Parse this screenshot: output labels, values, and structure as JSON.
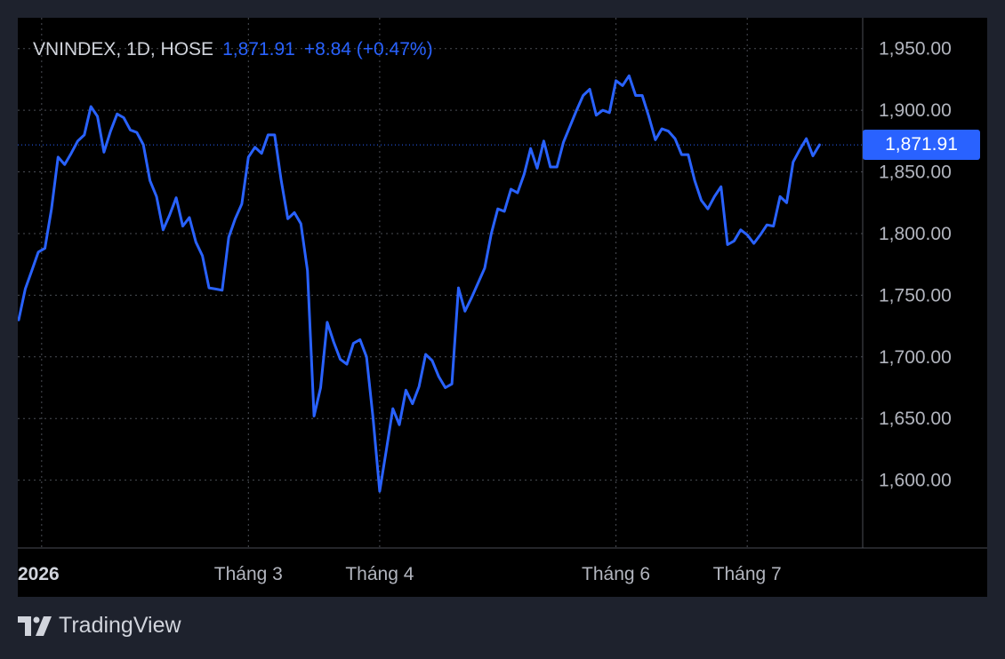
{
  "legend": {
    "symbol": "VNINDEX, 1D, HOSE",
    "last": "1,871.91",
    "change": "+8.84 (+0.47%)"
  },
  "price_tag": "1,871.91",
  "brand": {
    "name": "TradingView"
  },
  "colors": {
    "line": "#2962ff",
    "background": "#000000",
    "frame": "#1e222d",
    "grid": "#4a4d55",
    "text": "#b2b5be"
  },
  "chart_data": {
    "type": "line",
    "last_value": 1871.91,
    "ylim": [
      1545,
      1975
    ],
    "y_ticks": [
      1950,
      1900,
      1850,
      1800,
      1750,
      1700,
      1650,
      1600
    ],
    "y_tick_labels": [
      "1,950.00",
      "1,900.00",
      "1,850.00",
      "1,800.00",
      "1,750.00",
      "1,700.00",
      "1,650.00",
      "1,600.00"
    ],
    "x_ticks": [
      {
        "label": "2026",
        "index": 3.5,
        "bold": true
      },
      {
        "label": "Tháng 3",
        "index": 35
      },
      {
        "label": "Tháng 4",
        "index": 55
      },
      {
        "label": "Tháng 6",
        "index": 91
      },
      {
        "label": "Tháng 7",
        "index": 111
      }
    ],
    "grid": true,
    "series": [
      {
        "values": [
          1730,
          1755,
          1770,
          1785,
          1788,
          1820,
          1862,
          1856,
          1865,
          1875,
          1880,
          1903,
          1895,
          1866,
          1883,
          1897,
          1894,
          1884,
          1882,
          1872,
          1843,
          1830,
          1803,
          1815,
          1829,
          1806,
          1813,
          1793,
          1782,
          1756,
          1755,
          1754,
          1797,
          1812,
          1824,
          1862,
          1870,
          1865,
          1880,
          1880,
          1843,
          1812,
          1817,
          1808,
          1770,
          1652,
          1675,
          1728,
          1712,
          1698,
          1694,
          1711,
          1714,
          1700,
          1650,
          1591,
          1624,
          1658,
          1645,
          1673,
          1662,
          1676,
          1702,
          1697,
          1684,
          1675,
          1678,
          1756,
          1737,
          1748,
          1760,
          1772,
          1800,
          1820,
          1818,
          1836,
          1833,
          1848,
          1869,
          1853,
          1875,
          1854,
          1854,
          1874,
          1887,
          1900,
          1912,
          1917,
          1896,
          1900,
          1898,
          1924,
          1920,
          1928,
          1912,
          1912,
          1895,
          1876,
          1885,
          1883,
          1877,
          1864,
          1864,
          1843,
          1827,
          1820,
          1830,
          1838,
          1791,
          1794,
          1803,
          1799,
          1792,
          1799,
          1807,
          1806,
          1830,
          1825,
          1858,
          1868,
          1877,
          1863,
          1871.91
        ]
      }
    ]
  }
}
